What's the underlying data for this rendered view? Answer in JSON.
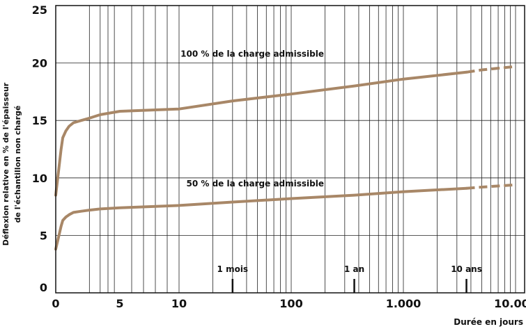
{
  "chart_data": {
    "type": "line",
    "title": "",
    "ylabel": [
      "Déflexion relative en % de l'épaisseur",
      "de l'échantillon non chargé"
    ],
    "xlabel": "Durée en jours",
    "ylim": [
      0,
      25
    ],
    "yticks": [
      0,
      5,
      10,
      15,
      20,
      25
    ],
    "x_tick_labels": [
      {
        "value": 0,
        "label": "0"
      },
      {
        "value": 5,
        "label": "5"
      },
      {
        "value": 10,
        "label": "10"
      },
      {
        "value": 100,
        "label": "100"
      },
      {
        "value": 1000,
        "label": "1.000"
      },
      {
        "value": 10000,
        "label": "10.000"
      }
    ],
    "markers": [
      {
        "label": "1 mois",
        "x": 30
      },
      {
        "label": "1 an",
        "x": 365
      },
      {
        "label": "10 ans",
        "x": 3650
      }
    ],
    "grid": true,
    "line_color": "#a88767",
    "series": [
      {
        "name": "100 % de la charge admissible",
        "x": [
          0,
          0.01,
          0.02,
          0.05,
          0.1,
          0.2,
          0.5,
          1,
          2,
          5,
          10,
          30,
          100,
          365,
          1000,
          3650
        ],
        "y": [
          8.5,
          12.5,
          13.5,
          14.1,
          14.5,
          14.8,
          15.0,
          15.2,
          15.5,
          15.8,
          16.0,
          16.7,
          17.3,
          18.0,
          18.6,
          19.2
        ],
        "projection_x": [
          3650,
          5000,
          10000
        ],
        "projection_y": [
          19.2,
          19.4,
          19.7
        ]
      },
      {
        "name": "50 % de la charge admissible",
        "x": [
          0,
          0.01,
          0.02,
          0.05,
          0.1,
          0.2,
          0.5,
          1,
          2,
          5,
          10,
          30,
          100,
          365,
          1000,
          3650
        ],
        "y": [
          3.8,
          5.8,
          6.3,
          6.6,
          6.8,
          7.0,
          7.1,
          7.2,
          7.3,
          7.4,
          7.6,
          7.9,
          8.2,
          8.5,
          8.8,
          9.1
        ],
        "projection_x": [
          3650,
          5000,
          10000
        ],
        "projection_y": [
          9.1,
          9.2,
          9.4
        ]
      }
    ]
  }
}
